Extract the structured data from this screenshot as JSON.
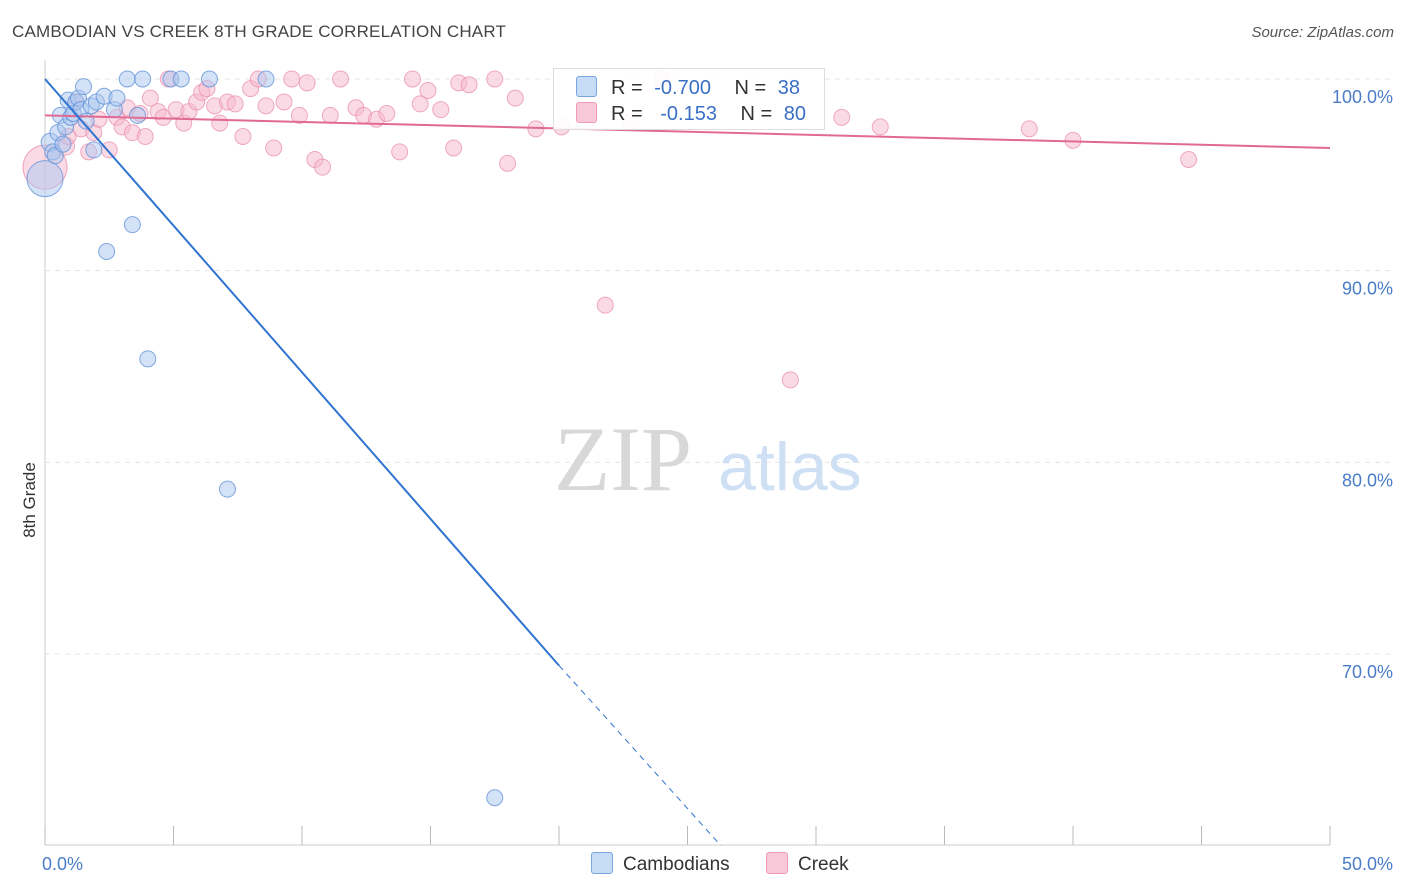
{
  "title": "CAMBODIAN VS CREEK 8TH GRADE CORRELATION CHART",
  "source": "Source: ZipAtlas.com",
  "watermark": {
    "zip": "ZIP",
    "atlas": "atlas"
  },
  "colors": {
    "cambodians_fill": "#a9c6f0",
    "cambodians_stroke": "#5b8fd6",
    "cambodians_line": "#2f74d0",
    "creek_fill": "#f6b8cc",
    "creek_stroke": "#ea8fad",
    "creek_line": "#e06a93",
    "axis_label": "#4a7cc8",
    "grid": "#e4e4e4"
  },
  "legend": {
    "rows": [
      {
        "series": "cambodians",
        "r_label": "R =",
        "r_value": "-0.700",
        "n_label": "N =",
        "n_value": "38"
      },
      {
        "series": "creek",
        "r_label": "R =",
        "r_value": "-0.153",
        "n_label": "N =",
        "n_value": "80"
      }
    ]
  },
  "chart_data": {
    "type": "scatter",
    "title": "CAMBODIAN VS CREEK 8TH GRADE CORRELATION CHART",
    "xlabel": "",
    "ylabel": "8th Grade",
    "xlim": [
      0,
      50
    ],
    "ylim": [
      60,
      101.5
    ],
    "x_tick_labels": [
      {
        "value": 0,
        "label": "0.0%"
      },
      {
        "value": 50,
        "label": "50.0%"
      }
    ],
    "y_tick_labels": [
      {
        "value": 100,
        "label": "100.0%"
      },
      {
        "value": 90,
        "label": "90.0%"
      },
      {
        "value": 80,
        "label": "80.0%"
      },
      {
        "value": 70,
        "label": "70.0%"
      }
    ],
    "legend_position": "bottom-center",
    "series": [
      {
        "name": "Cambodians",
        "r": -0.7,
        "n": 38,
        "trend": {
          "x0": 0.0,
          "y0": 100.0,
          "x1": 20.0,
          "y1": 69.4,
          "dash_x1": 26.3,
          "dash_y1": 60.0
        },
        "points": [
          [
            0.0,
            94.8,
            18
          ],
          [
            0.2,
            96.7,
            9
          ],
          [
            0.3,
            96.2,
            8
          ],
          [
            0.4,
            96.0,
            8
          ],
          [
            0.5,
            97.2,
            8
          ],
          [
            0.6,
            98.1,
            8
          ],
          [
            0.7,
            96.6,
            8
          ],
          [
            0.8,
            97.5,
            8
          ],
          [
            0.9,
            98.9,
            8
          ],
          [
            1.0,
            98.0,
            8
          ],
          [
            1.1,
            98.2,
            8
          ],
          [
            1.2,
            98.8,
            8
          ],
          [
            1.3,
            99.0,
            8
          ],
          [
            1.4,
            98.4,
            8
          ],
          [
            1.5,
            99.6,
            8
          ],
          [
            1.6,
            97.8,
            8
          ],
          [
            1.8,
            98.6,
            8
          ],
          [
            1.9,
            96.3,
            8
          ],
          [
            2.0,
            98.8,
            8
          ],
          [
            2.3,
            99.1,
            8
          ],
          [
            2.4,
            91.0,
            8
          ],
          [
            2.7,
            98.4,
            8
          ],
          [
            2.8,
            99.0,
            8
          ],
          [
            3.2,
            100.0,
            8
          ],
          [
            3.4,
            92.4,
            8
          ],
          [
            3.6,
            98.1,
            8
          ],
          [
            3.8,
            100.0,
            8
          ],
          [
            4.0,
            85.4,
            8
          ],
          [
            4.9,
            100.0,
            8
          ],
          [
            5.3,
            100.0,
            8
          ],
          [
            6.4,
            100.0,
            8
          ],
          [
            7.1,
            78.6,
            8
          ],
          [
            8.6,
            100.0,
            8
          ],
          [
            17.5,
            62.5,
            8
          ]
        ]
      },
      {
        "name": "Creek",
        "r": -0.153,
        "n": 80,
        "trend": {
          "x0": 0.0,
          "y0": 98.1,
          "x1": 50.0,
          "y1": 96.4
        },
        "points": [
          [
            0.0,
            95.4,
            22
          ],
          [
            0.8,
            96.5,
            9
          ],
          [
            0.9,
            97.0,
            8
          ],
          [
            1.2,
            98.8,
            8
          ],
          [
            1.4,
            97.4,
            8
          ],
          [
            1.7,
            96.2,
            8
          ],
          [
            1.9,
            97.2,
            8
          ],
          [
            2.1,
            97.9,
            8
          ],
          [
            2.5,
            96.3,
            8
          ],
          [
            2.8,
            98.0,
            8
          ],
          [
            3.0,
            97.5,
            8
          ],
          [
            3.2,
            98.5,
            8
          ],
          [
            3.4,
            97.2,
            8
          ],
          [
            3.7,
            98.2,
            8
          ],
          [
            3.9,
            97.0,
            8
          ],
          [
            4.1,
            99.0,
            8
          ],
          [
            4.4,
            98.3,
            8
          ],
          [
            4.6,
            98.0,
            8
          ],
          [
            4.8,
            100.0,
            8
          ],
          [
            5.1,
            98.4,
            8
          ],
          [
            5.4,
            97.7,
            8
          ],
          [
            5.6,
            98.3,
            8
          ],
          [
            5.9,
            98.8,
            8
          ],
          [
            6.1,
            99.3,
            8
          ],
          [
            6.3,
            99.5,
            8
          ],
          [
            6.6,
            98.6,
            8
          ],
          [
            6.8,
            97.7,
            8
          ],
          [
            7.1,
            98.8,
            8
          ],
          [
            7.4,
            98.7,
            8
          ],
          [
            7.7,
            97.0,
            8
          ],
          [
            8.0,
            99.5,
            8
          ],
          [
            8.3,
            100.0,
            8
          ],
          [
            8.6,
            98.6,
            8
          ],
          [
            8.9,
            96.4,
            8
          ],
          [
            9.3,
            98.8,
            8
          ],
          [
            9.6,
            100.0,
            8
          ],
          [
            9.9,
            98.1,
            8
          ],
          [
            10.2,
            99.8,
            8
          ],
          [
            10.5,
            95.8,
            8
          ],
          [
            10.8,
            95.4,
            8
          ],
          [
            11.1,
            98.1,
            8
          ],
          [
            11.5,
            100.0,
            8
          ],
          [
            12.1,
            98.5,
            8
          ],
          [
            12.4,
            98.1,
            8
          ],
          [
            12.9,
            97.9,
            8
          ],
          [
            13.3,
            98.2,
            8
          ],
          [
            13.8,
            96.2,
            8
          ],
          [
            14.3,
            100.0,
            8
          ],
          [
            14.6,
            98.7,
            8
          ],
          [
            14.9,
            99.4,
            8
          ],
          [
            15.4,
            98.4,
            8
          ],
          [
            15.9,
            96.4,
            8
          ],
          [
            16.1,
            99.8,
            8
          ],
          [
            16.5,
            99.7,
            8
          ],
          [
            17.5,
            100.0,
            8
          ],
          [
            18.0,
            95.6,
            8
          ],
          [
            18.3,
            99.0,
            8
          ],
          [
            19.1,
            97.4,
            8
          ],
          [
            20.1,
            97.5,
            8
          ],
          [
            21.0,
            99.5,
            8
          ],
          [
            21.8,
            88.2,
            8
          ],
          [
            22.8,
            97.8,
            8
          ],
          [
            24.0,
            100.0,
            8
          ],
          [
            29.0,
            84.3,
            8
          ],
          [
            31.0,
            98.0,
            8
          ],
          [
            32.5,
            97.5,
            8
          ],
          [
            38.3,
            97.4,
            8
          ],
          [
            40.0,
            96.8,
            8
          ],
          [
            44.5,
            95.8,
            8
          ]
        ]
      }
    ]
  }
}
